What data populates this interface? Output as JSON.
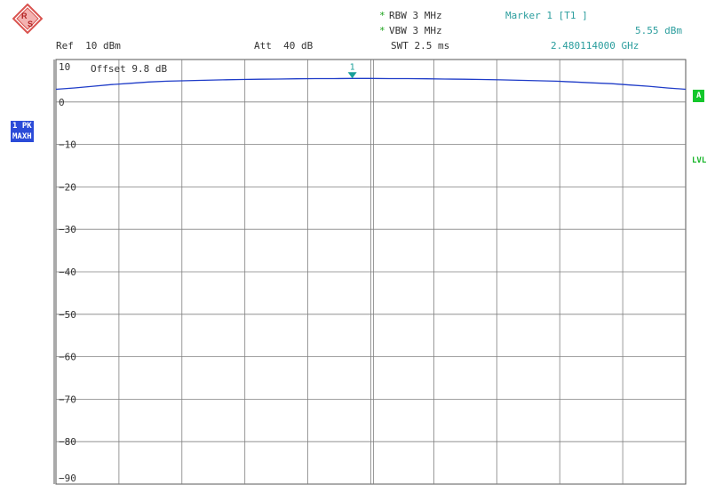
{
  "header": {
    "rbw": "RBW 3 MHz",
    "vbw": "VBW 3 MHz",
    "swt": "SWT 2.5 ms",
    "star": "*",
    "ref": "Ref  10 dBm",
    "att": "Att  40 dB",
    "marker_title": "Marker 1 [T1 ]",
    "marker_level": "5.55 dBm",
    "marker_freq": "2.480114000 GHz"
  },
  "side": {
    "trace_mode_1": "1 PK",
    "trace_mode_2": "MAXH",
    "a_tag": "A",
    "lvl_tag": "LVL"
  },
  "overlay": {
    "offset_text": "Offset   9.8 dB"
  },
  "logo": {
    "letters": "R S"
  },
  "colors": {
    "trace": "#1f3cc8",
    "marker": "#1aa09a",
    "grid": "#808080",
    "accent_green": "#13c72b",
    "label_blue": "#2b4bd8"
  },
  "chart_data": {
    "type": "line",
    "ylim": [
      -90,
      10
    ],
    "yticks": [
      "10",
      "0",
      "−10",
      "−20",
      "−30",
      "−40",
      "−50",
      "−60",
      "−70",
      "−80",
      "−90"
    ],
    "grid": true,
    "x_divisions": 10,
    "series": [
      {
        "values": [
          3.0,
          3.3,
          3.7,
          4.1,
          4.4,
          4.7,
          4.9,
          5.0,
          5.1,
          5.2,
          5.3,
          5.35,
          5.4,
          5.45,
          5.5,
          5.5,
          5.55,
          5.55,
          5.5,
          5.5,
          5.45,
          5.4,
          5.35,
          5.3,
          5.2,
          5.1,
          5.0,
          4.9,
          4.7,
          4.5,
          4.3,
          4.0,
          3.7,
          3.3,
          3.0
        ]
      }
    ],
    "marker": {
      "label": "1",
      "index": 16,
      "value": 5.55
    }
  }
}
